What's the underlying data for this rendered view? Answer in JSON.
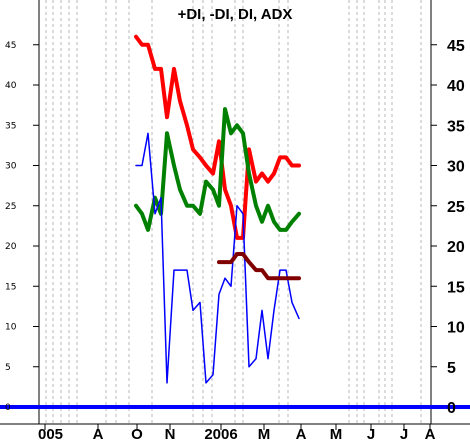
{
  "chart_data": {
    "type": "line",
    "title": "+DI, -DI, DI, ADX",
    "x_tick_labels": [
      "005",
      "A",
      "O",
      "N",
      "2006",
      "M",
      "A",
      "M",
      "J",
      "J",
      "A"
    ],
    "y_ticks": [
      0,
      5,
      10,
      15,
      20,
      25,
      30,
      35,
      40,
      45
    ],
    "ylim": [
      -1,
      50
    ],
    "grid": "vertical dashed",
    "series": [
      {
        "color": "#ff0000",
        "values": [
          [
            136,
            46
          ],
          [
            142,
            45
          ],
          [
            148,
            45
          ],
          [
            155,
            42
          ],
          [
            161,
            42
          ],
          [
            167,
            36
          ],
          [
            174,
            42
          ],
          [
            180,
            38
          ],
          [
            187,
            35
          ],
          [
            193,
            32
          ],
          [
            200,
            31
          ],
          [
            206,
            30
          ],
          [
            213,
            29
          ],
          [
            219,
            33
          ],
          [
            225,
            27
          ],
          [
            231,
            25
          ],
          [
            237,
            21
          ],
          [
            243,
            21
          ],
          [
            249,
            32
          ],
          [
            256,
            28
          ],
          [
            262,
            29
          ],
          [
            268,
            28
          ],
          [
            274,
            29
          ],
          [
            280,
            31
          ],
          [
            286,
            31
          ],
          [
            292,
            30
          ],
          [
            299,
            30
          ]
        ]
      },
      {
        "color": "#008000",
        "values": [
          [
            136,
            25
          ],
          [
            142,
            24
          ],
          [
            148,
            22
          ],
          [
            155,
            26
          ],
          [
            161,
            24
          ],
          [
            167,
            34
          ],
          [
            174,
            30
          ],
          [
            180,
            27
          ],
          [
            187,
            25
          ],
          [
            193,
            25
          ],
          [
            200,
            24
          ],
          [
            206,
            28
          ],
          [
            213,
            27
          ],
          [
            219,
            25
          ],
          [
            225,
            37
          ],
          [
            231,
            34
          ],
          [
            237,
            35
          ],
          [
            243,
            34
          ],
          [
            249,
            29
          ],
          [
            256,
            25
          ],
          [
            262,
            23
          ],
          [
            268,
            25
          ],
          [
            274,
            23
          ],
          [
            280,
            22
          ],
          [
            286,
            22
          ],
          [
            292,
            23
          ],
          [
            299,
            24
          ]
        ]
      },
      {
        "color": "#0000ff",
        "values": [
          [
            136,
            30
          ],
          [
            142,
            30
          ],
          [
            148,
            34
          ],
          [
            155,
            24
          ],
          [
            161,
            26
          ],
          [
            167,
            3
          ],
          [
            174,
            17
          ],
          [
            180,
            17
          ],
          [
            187,
            17
          ],
          [
            193,
            12
          ],
          [
            200,
            13
          ],
          [
            206,
            3
          ],
          [
            213,
            4
          ],
          [
            219,
            14
          ],
          [
            225,
            16
          ],
          [
            231,
            15
          ],
          [
            237,
            25
          ],
          [
            243,
            24
          ],
          [
            249,
            5
          ],
          [
            256,
            6
          ],
          [
            262,
            12
          ],
          [
            268,
            6
          ],
          [
            274,
            12
          ],
          [
            280,
            17
          ],
          [
            286,
            17
          ],
          [
            292,
            13
          ],
          [
            299,
            11
          ]
        ]
      },
      {
        "color": "#800000",
        "values": [
          [
            219,
            18
          ],
          [
            225,
            18
          ],
          [
            231,
            18
          ],
          [
            237,
            19
          ],
          [
            243,
            19
          ],
          [
            249,
            18
          ],
          [
            256,
            17
          ],
          [
            262,
            17
          ],
          [
            268,
            16
          ],
          [
            274,
            16
          ],
          [
            280,
            16
          ],
          [
            286,
            16
          ],
          [
            292,
            16
          ],
          [
            299,
            16
          ]
        ]
      },
      {
        "color": "#0000ff",
        "values": [
          [
            0,
            0
          ],
          [
            470,
            0
          ]
        ]
      }
    ]
  }
}
